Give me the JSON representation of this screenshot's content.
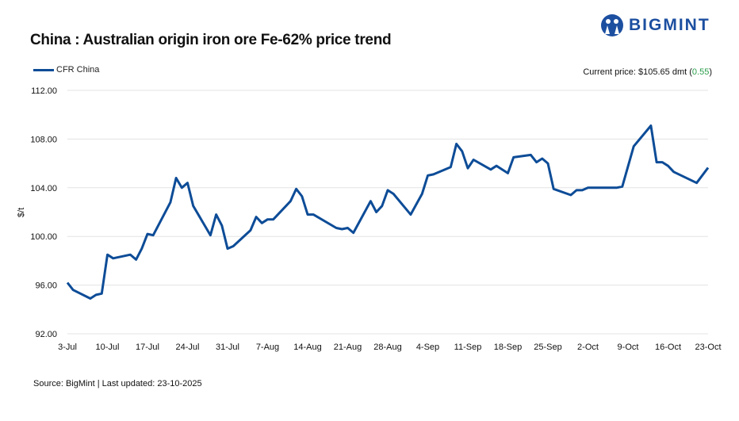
{
  "header": {
    "title": "China : Australian origin iron ore Fe-62% price trend",
    "logo_text": "BIGMINT"
  },
  "current": {
    "label": "Current price: $105.65 dmt (",
    "change": "0.55",
    "close": ")"
  },
  "footer": {
    "source": "Source: BigMint | Last updated: 23-10-2025"
  },
  "colors": {
    "line": "#0d4c97",
    "change": "#2a9d4a",
    "grid": "#e3e3e3"
  },
  "chart_data": {
    "type": "line",
    "title": "China : Australian origin iron ore Fe-62% price trend",
    "xlabel": "",
    "ylabel": "$/t",
    "ylim": [
      92,
      112
    ],
    "yticks": [
      "92.00",
      "96.00",
      "100.00",
      "104.00",
      "108.00",
      "112.00"
    ],
    "xlim_days": [
      0,
      112
    ],
    "xticks": [
      "3-Jul",
      "10-Jul",
      "17-Jul",
      "24-Jul",
      "31-Jul",
      "7-Aug",
      "14-Aug",
      "21-Aug",
      "28-Aug",
      "4-Sep",
      "11-Sep",
      "18-Sep",
      "25-Sep",
      "2-Oct",
      "9-Oct",
      "16-Oct",
      "23-Oct"
    ],
    "legend": "top-left",
    "series": [
      {
        "name": "CFR China",
        "x_days_since_3_Jul": [
          0,
          1,
          4,
          5,
          6,
          7,
          8,
          11,
          12,
          13,
          14,
          15,
          18,
          19,
          20,
          21,
          22,
          25,
          26,
          27,
          28,
          29,
          32,
          33,
          34,
          35,
          36,
          39,
          40,
          41,
          42,
          43,
          47,
          48,
          49,
          50,
          53,
          54,
          55,
          56,
          57,
          60,
          62,
          63,
          64,
          67,
          68,
          69,
          70,
          71,
          74,
          75,
          77,
          78,
          81,
          82,
          83,
          84,
          85,
          88,
          89,
          90,
          91,
          96,
          97,
          99,
          102,
          103,
          104,
          105,
          106,
          110,
          112
        ],
        "values": [
          96.2,
          95.6,
          94.9,
          95.2,
          95.3,
          98.5,
          98.2,
          98.5,
          98.1,
          99.0,
          100.2,
          100.1,
          102.8,
          104.8,
          104.0,
          104.4,
          102.5,
          100.1,
          101.8,
          100.9,
          99.0,
          99.2,
          100.5,
          101.6,
          101.1,
          101.4,
          101.4,
          102.9,
          103.9,
          103.3,
          101.8,
          101.8,
          100.7,
          100.6,
          100.7,
          100.3,
          102.9,
          102.0,
          102.5,
          103.8,
          103.5,
          101.8,
          103.5,
          105.0,
          105.1,
          105.7,
          107.6,
          107.0,
          105.6,
          106.3,
          105.5,
          105.8,
          105.2,
          106.5,
          106.7,
          106.1,
          106.4,
          106.0,
          103.9,
          103.4,
          103.8,
          103.8,
          104.0,
          104.0,
          104.1,
          107.4,
          109.1,
          106.1,
          106.1,
          105.8,
          105.3,
          104.4,
          105.65
        ]
      }
    ]
  }
}
